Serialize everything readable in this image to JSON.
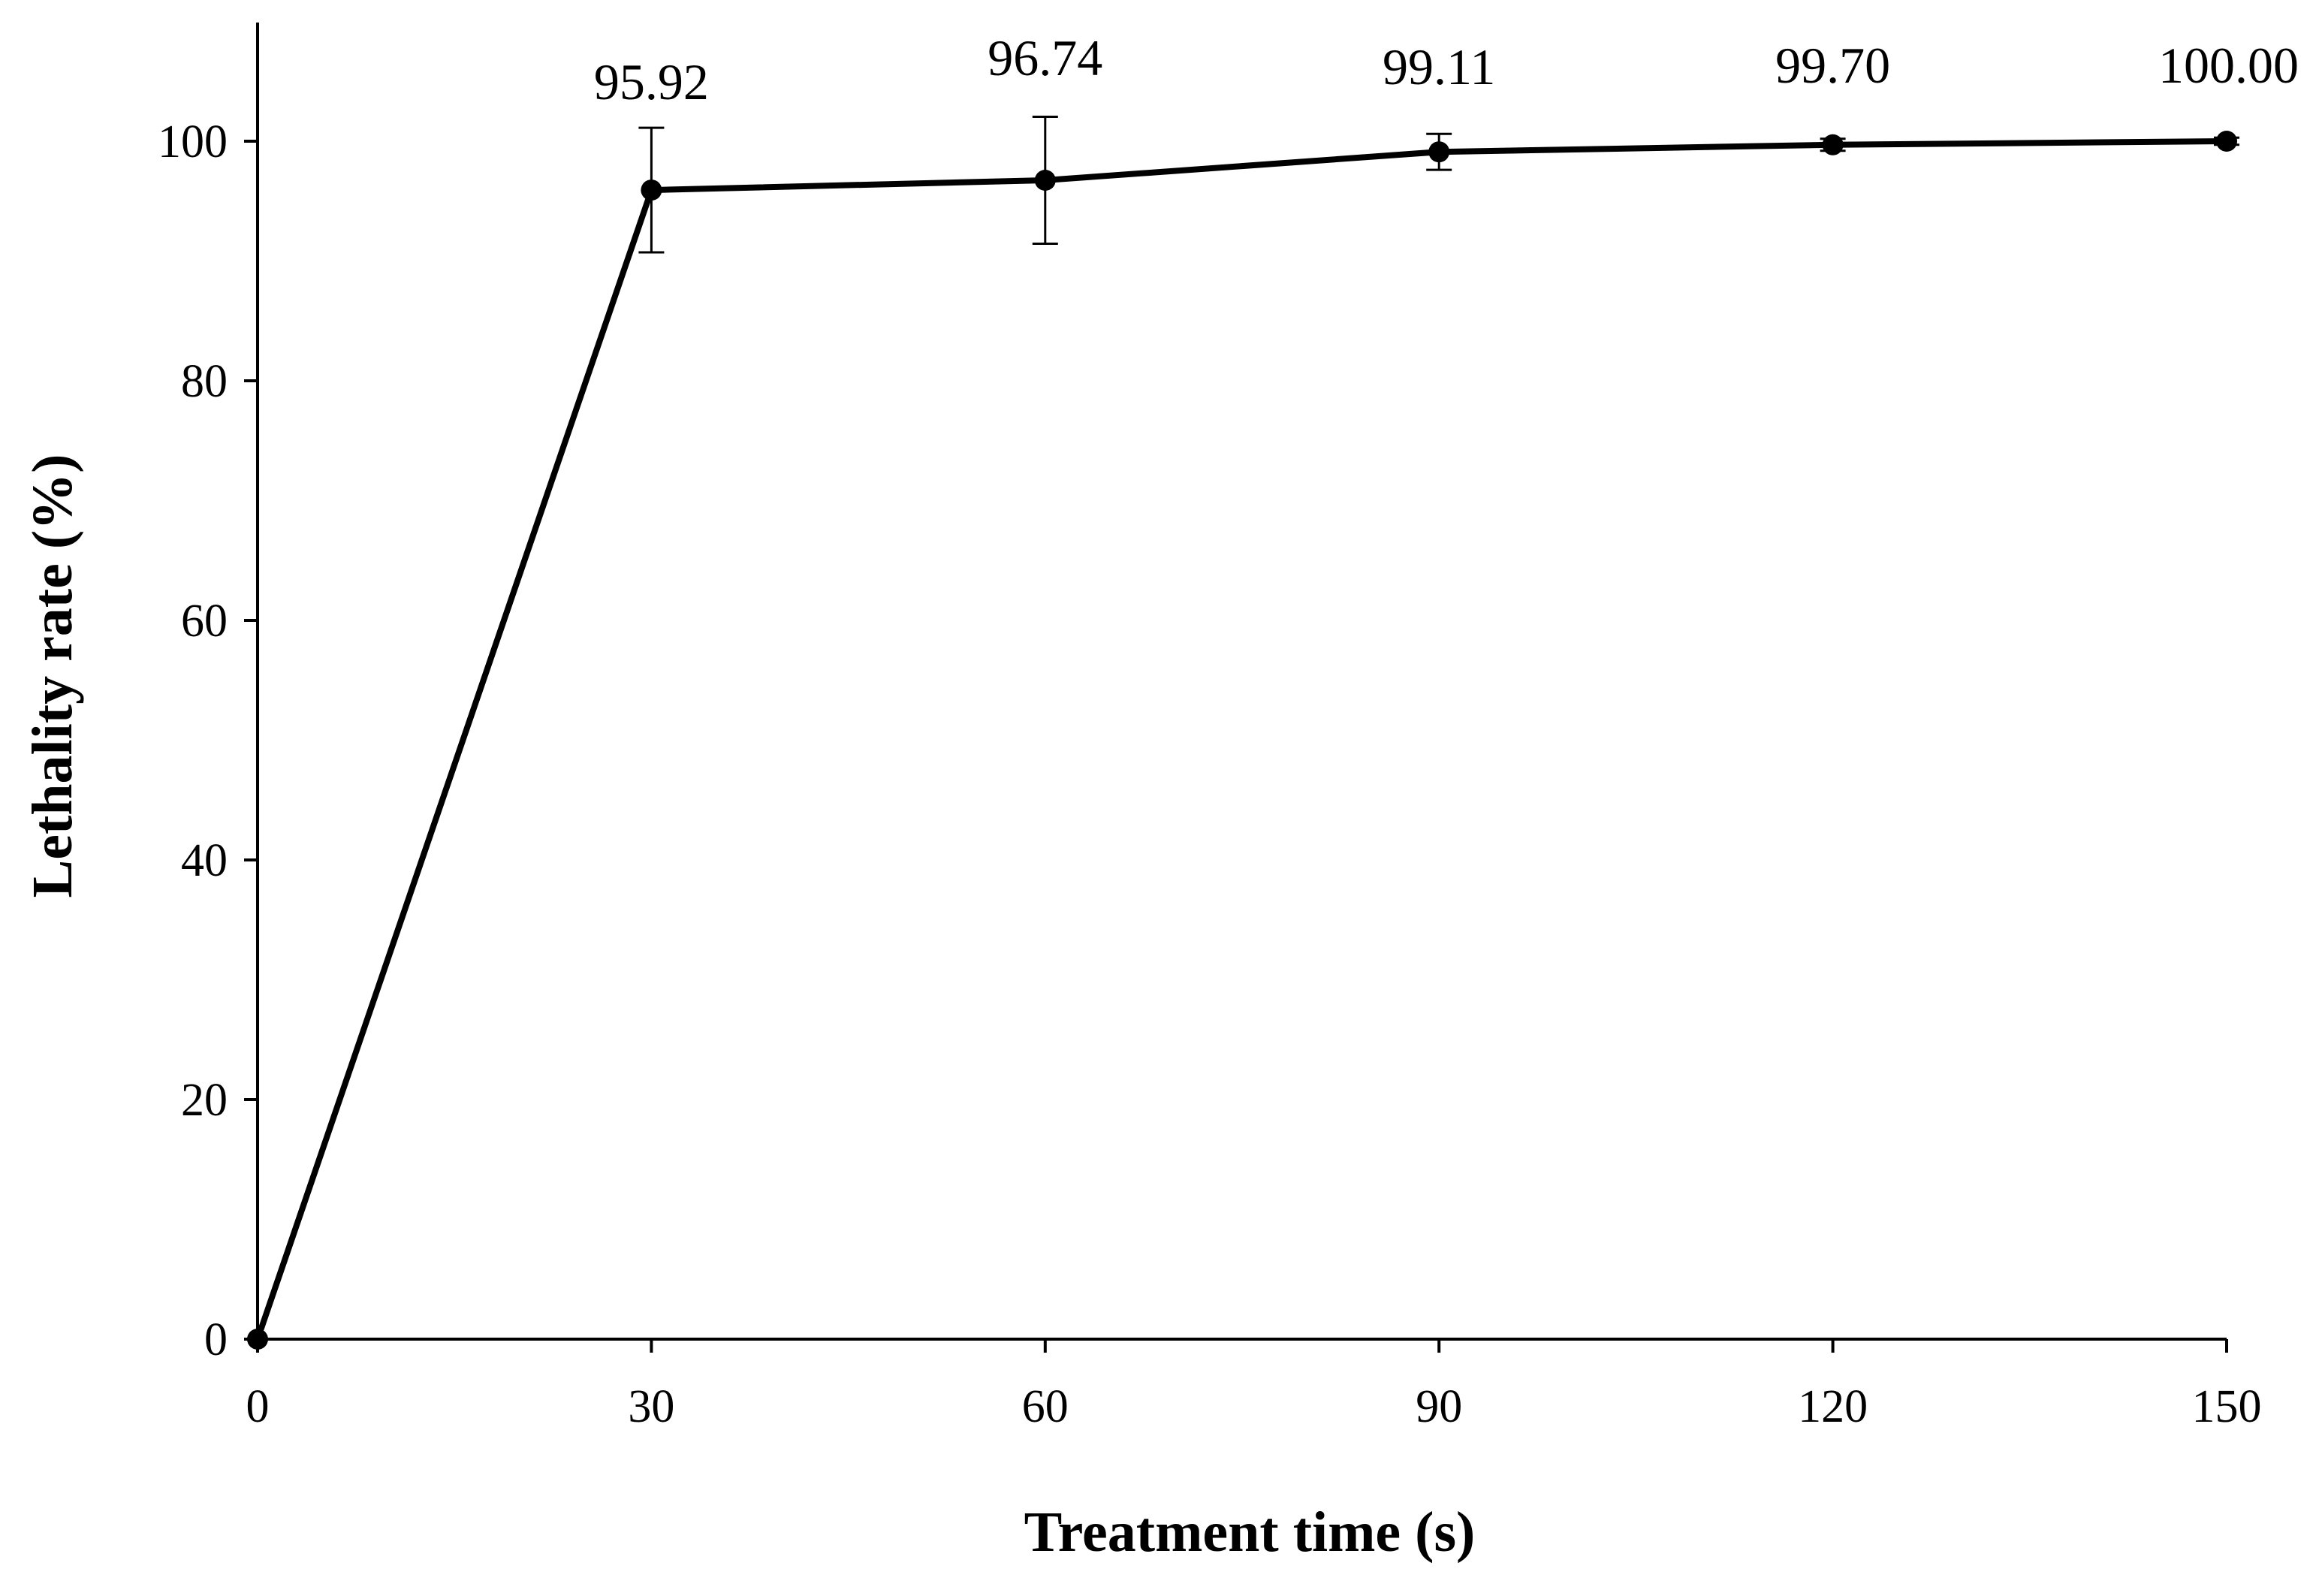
{
  "chart_data": {
    "type": "line",
    "title": "",
    "xlabel": "Treatment time (s)",
    "ylabel": "Lethality rate (%)",
    "xlim": [
      0,
      150
    ],
    "ylim": [
      0,
      110
    ],
    "x_ticks": [
      0,
      30,
      60,
      90,
      120,
      150
    ],
    "y_ticks": [
      0,
      20,
      40,
      60,
      80,
      100
    ],
    "grid": false,
    "legend": "none",
    "series": [
      {
        "name": "Lethality rate",
        "x": [
          0,
          30,
          60,
          90,
          120,
          150
        ],
        "y": [
          0,
          95.92,
          96.74,
          99.11,
          99.7,
          100.0
        ],
        "error": [
          0,
          5.2,
          5.3,
          1.5,
          0.5,
          0.3
        ],
        "color": "#000000"
      }
    ],
    "data_labels": [
      {
        "x": 30,
        "text": "95.92"
      },
      {
        "x": 60,
        "text": "96.74"
      },
      {
        "x": 90,
        "text": "99.11"
      },
      {
        "x": 120,
        "text": "99.70"
      },
      {
        "x": 150,
        "text": "100.00"
      }
    ]
  }
}
